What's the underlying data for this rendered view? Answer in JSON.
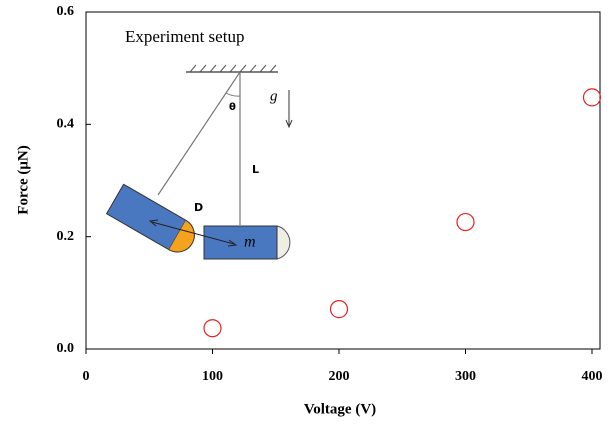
{
  "chart_data": {
    "type": "scatter",
    "x_label": "Voltage (V)",
    "y_label": "Force (μN)",
    "x": [
      100,
      200,
      300,
      400
    ],
    "values": [
      0.037,
      0.071,
      0.226,
      0.448
    ],
    "color": "#e8211c",
    "marker": "hollow-circle",
    "xlim": [
      0,
      400
    ],
    "xticks": [
      0,
      100,
      200,
      300,
      400
    ],
    "ylim": [
      0,
      0.6
    ],
    "yticks": [
      {
        "value": 0,
        "label": "0.0"
      },
      0.2,
      0.4,
      0.6
    ],
    "grid": false,
    "inset": {
      "title": "Experiment setup",
      "labels": [
        "θ",
        "g",
        "L",
        "D",
        "m"
      ]
    }
  }
}
